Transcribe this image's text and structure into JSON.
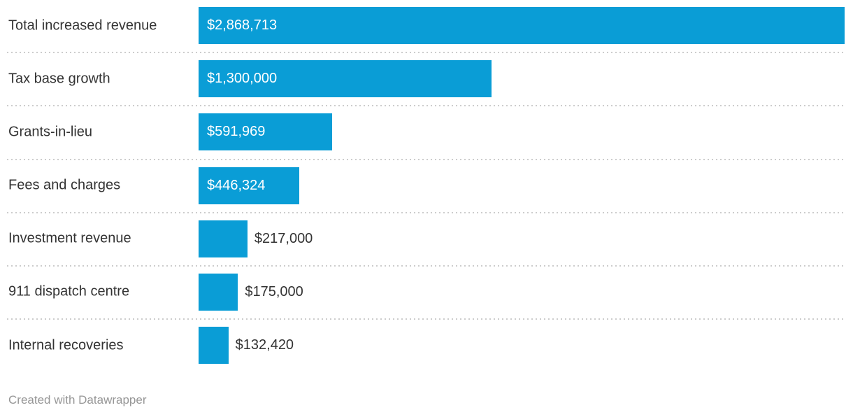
{
  "chart_data": {
    "type": "bar",
    "orientation": "horizontal",
    "categories": [
      "Total increased revenue",
      "Tax base growth",
      "Grants-in-lieu",
      "Fees and charges",
      "Investment revenue",
      "911 dispatch centre",
      "Internal recoveries"
    ],
    "values": [
      2868713,
      1300000,
      591969,
      446324,
      217000,
      175000,
      132420
    ],
    "value_labels": [
      "$2,868,713",
      "$1,300,000",
      "$591,969",
      "$446,324",
      "$217,000",
      "$175,000",
      "$132,420"
    ],
    "xlim": [
      0,
      2868713
    ],
    "grid": false,
    "legend": "none",
    "title": "",
    "xlabel": "",
    "ylabel": ""
  },
  "colors": {
    "bar": "#0a9dd6",
    "label_text": "#333333",
    "value_inside": "#ffffff",
    "value_outside": "#333333",
    "separator": "#cccccc",
    "footer_text": "#969696",
    "background": "#ffffff"
  },
  "footer": {
    "attribution": "Created with Datawrapper"
  }
}
